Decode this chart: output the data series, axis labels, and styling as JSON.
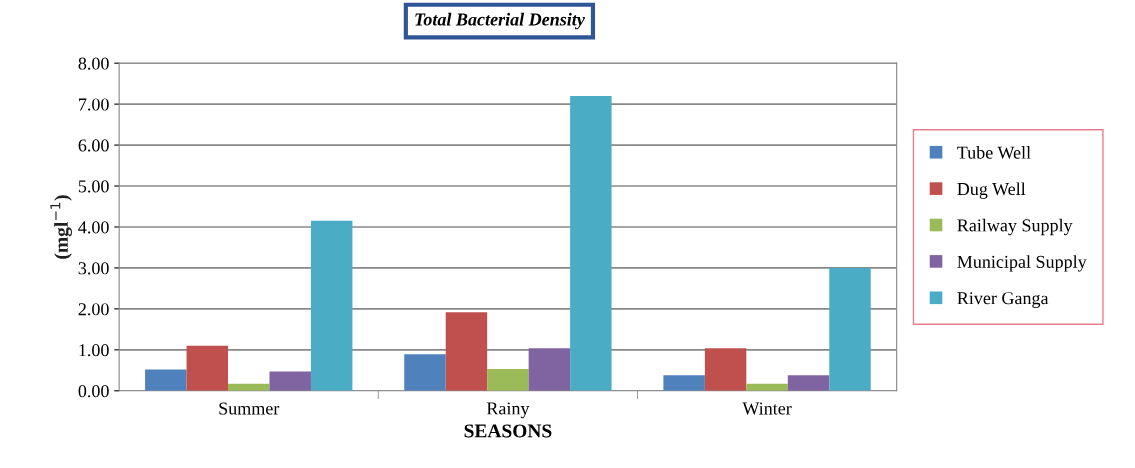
{
  "chart_data": {
    "type": "bar",
    "title": "Total Bacterial Density",
    "xlabel": "SEASONS",
    "ylabel": "(mgl$^{−1}$)",
    "categories": [
      "Summer",
      "Rainy",
      "Winter"
    ],
    "series": [
      {
        "name": "Tube Well",
        "color": "#4f81bd",
        "values": [
          0.52,
          0.89,
          0.38
        ]
      },
      {
        "name": "Dug Well",
        "color": "#c0504d",
        "values": [
          1.1,
          1.92,
          1.04
        ]
      },
      {
        "name": "Railway Supply",
        "color": "#9bbb59",
        "values": [
          0.17,
          0.53,
          0.17
        ]
      },
      {
        "name": "Municipal Supply",
        "color": "#8064a2",
        "values": [
          0.47,
          1.04,
          0.38
        ]
      },
      {
        "name": "River Ganga",
        "color": "#4bacc6",
        "values": [
          4.15,
          7.2,
          3.0
        ]
      }
    ],
    "ylim": [
      0,
      8
    ],
    "yticks": [
      {
        "value": 0,
        "label": "0.00"
      },
      {
        "value": 1,
        "label": "1.00"
      },
      {
        "value": 2,
        "label": "2.00"
      },
      {
        "value": 3,
        "label": "3.00"
      },
      {
        "value": 4,
        "label": "4.00"
      },
      {
        "value": 5,
        "label": "5.00"
      },
      {
        "value": 6,
        "label": "6.00"
      },
      {
        "value": 7,
        "label": "7.00"
      },
      {
        "value": 8,
        "label": "8.00"
      }
    ],
    "grid": "y",
    "legend": "right"
  }
}
